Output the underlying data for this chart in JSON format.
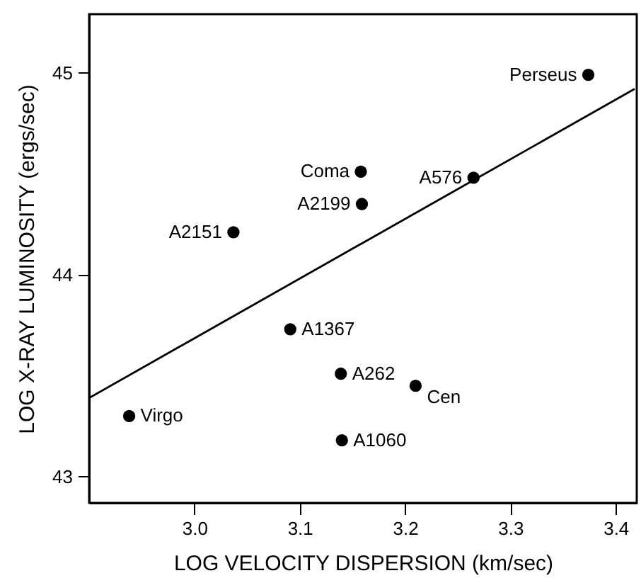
{
  "chart_data": {
    "type": "scatter",
    "xlabel": "LOG VELOCITY DISPERSION (km/sec)",
    "ylabel": "LOG X-RAY LUMINOSITY (ergs/sec)",
    "xlim": [
      2.9,
      3.42
    ],
    "ylim": [
      42.87,
      45.29
    ],
    "xticks": [
      {
        "value": 3,
        "label": "3.0"
      },
      3.1,
      3.2,
      3.3,
      3.4
    ],
    "yticks": [
      43,
      44,
      45
    ],
    "marker": "circle",
    "grid": false,
    "series": [
      {
        "color": "#000000",
        "x": [
          3.374,
          3.158,
          3.159,
          3.265,
          3.037,
          3.091,
          3.139,
          3.21,
          2.938,
          3.14
        ],
        "values": [
          44.99,
          44.51,
          44.35,
          44.48,
          44.21,
          43.73,
          43.51,
          43.45,
          43.3,
          43.18
        ]
      },
      {
        "type": "line",
        "marker": "none",
        "color": "#000000",
        "x": [
          2.9,
          3.418
        ],
        "values": [
          43.39,
          44.92
        ]
      }
    ],
    "annotations": [
      {
        "text": "Perseus",
        "x": 3.374,
        "y": 44.99
      },
      {
        "text": "Coma",
        "x": 3.158,
        "y": 44.51
      },
      {
        "text": "A2199",
        "x": 3.159,
        "y": 44.35
      },
      {
        "text": "A576",
        "x": 3.265,
        "y": 44.48
      },
      {
        "text": "A2151",
        "x": 3.037,
        "y": 44.21
      },
      {
        "text": "A1367",
        "x": 3.091,
        "y": 43.73
      },
      {
        "text": "A262",
        "x": 3.139,
        "y": 43.51
      },
      {
        "text": "Cen",
        "x": 3.21,
        "y": 43.45
      },
      {
        "text": "Virgo",
        "x": 2.938,
        "y": 43.3
      },
      {
        "text": "A1060",
        "x": 3.14,
        "y": 43.18
      }
    ]
  }
}
